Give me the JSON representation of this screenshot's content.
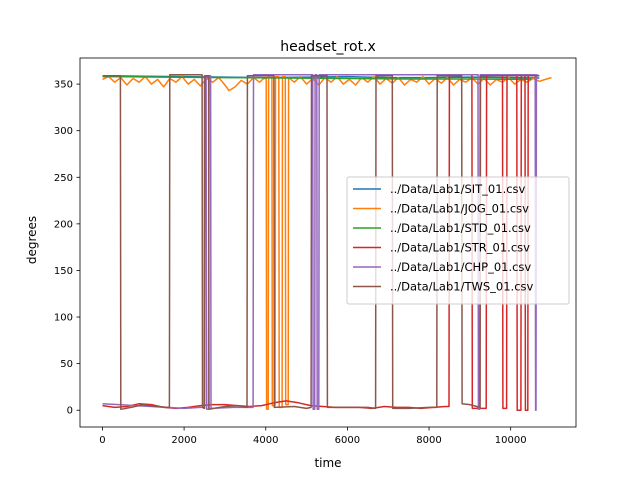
{
  "chart_data": {
    "type": "line",
    "title": "headset_rot.x",
    "xlabel": "time",
    "ylabel": "degrees",
    "xlim": [
      -550,
      11600
    ],
    "ylim": [
      -18,
      378
    ],
    "xticks": [
      0,
      2000,
      4000,
      6000,
      8000,
      10000
    ],
    "yticks": [
      0,
      50,
      100,
      150,
      200,
      250,
      300,
      350
    ],
    "legend_position": "center-right",
    "series": [
      {
        "name": "../Data/Lab1/SIT_01.csv",
        "color": "#1f77b4",
        "points": [
          [
            0,
            359
          ],
          [
            1000,
            358.5
          ],
          [
            2000,
            358
          ],
          [
            3000,
            357.5
          ],
          [
            4000,
            357
          ],
          [
            5000,
            357.5
          ],
          [
            6000,
            358
          ],
          [
            7000,
            357
          ],
          [
            8000,
            357
          ],
          [
            9000,
            357.5
          ],
          [
            10000,
            357
          ],
          [
            10700,
            356.5
          ]
        ]
      },
      {
        "name": "../Data/Lab1/JOG_01.csv",
        "color": "#ff7f0e",
        "points": [
          [
            0,
            355
          ],
          [
            150,
            358
          ],
          [
            300,
            352
          ],
          [
            450,
            357
          ],
          [
            600,
            349
          ],
          [
            750,
            356
          ],
          [
            900,
            352
          ],
          [
            1050,
            358
          ],
          [
            1200,
            350
          ],
          [
            1350,
            355
          ],
          [
            1500,
            347
          ],
          [
            1650,
            356
          ],
          [
            1800,
            352
          ],
          [
            1950,
            358
          ],
          [
            2100,
            350
          ],
          [
            2250,
            355
          ],
          [
            2400,
            348
          ],
          [
            2550,
            356
          ],
          [
            2700,
            352
          ],
          [
            2850,
            357
          ],
          [
            3000,
            349
          ],
          [
            3100,
            343
          ],
          [
            3250,
            347
          ],
          [
            3400,
            354
          ],
          [
            3550,
            350
          ],
          [
            3700,
            357
          ],
          [
            3850,
            352
          ],
          [
            3950,
            356
          ],
          [
            4010,
            356
          ],
          [
            4020,
            1
          ],
          [
            4060,
            1
          ],
          [
            4070,
            359
          ],
          [
            4150,
            359
          ],
          [
            4160,
            5
          ],
          [
            4230,
            5
          ],
          [
            4240,
            358
          ],
          [
            4320,
            358
          ],
          [
            4330,
            3
          ],
          [
            4400,
            3
          ],
          [
            4410,
            358
          ],
          [
            4480,
            358
          ],
          [
            4490,
            6
          ],
          [
            4550,
            6
          ],
          [
            4560,
            357
          ],
          [
            4700,
            352
          ],
          [
            4850,
            358
          ],
          [
            5000,
            350
          ],
          [
            5150,
            356
          ],
          [
            5300,
            349
          ],
          [
            5450,
            357
          ],
          [
            5600,
            352
          ],
          [
            5750,
            358
          ],
          [
            5900,
            350
          ],
          [
            6050,
            355
          ],
          [
            6200,
            349
          ],
          [
            6350,
            357
          ],
          [
            6500,
            352
          ],
          [
            6650,
            358
          ],
          [
            6800,
            350
          ],
          [
            6950,
            356
          ],
          [
            7100,
            351
          ],
          [
            7250,
            357
          ],
          [
            7400,
            349
          ],
          [
            7550,
            355
          ],
          [
            7700,
            352
          ],
          [
            7850,
            358
          ],
          [
            8000,
            350
          ],
          [
            8150,
            356
          ],
          [
            8300,
            351
          ],
          [
            8450,
            357
          ],
          [
            8600,
            349
          ],
          [
            8750,
            355
          ],
          [
            8900,
            352
          ],
          [
            9050,
            357
          ],
          [
            9200,
            350
          ],
          [
            9350,
            356
          ],
          [
            9500,
            349
          ],
          [
            9650,
            355
          ],
          [
            9800,
            352
          ],
          [
            9950,
            357
          ],
          [
            10100,
            350
          ],
          [
            10250,
            355
          ],
          [
            10400,
            352
          ],
          [
            10550,
            356
          ],
          [
            10700,
            353
          ],
          [
            10850,
            355
          ],
          [
            11000,
            357
          ]
        ]
      },
      {
        "name": "../Data/Lab1/STD_01.csv",
        "color": "#2ca02c",
        "points": [
          [
            0,
            358
          ],
          [
            1500,
            357.5
          ],
          [
            3000,
            357
          ],
          [
            4500,
            356.5
          ],
          [
            6000,
            356
          ],
          [
            7500,
            355.5
          ],
          [
            9000,
            355.5
          ],
          [
            10500,
            355
          ]
        ]
      },
      {
        "name": "../Data/Lab1/STR_01.csv",
        "color": "#d62728",
        "points": [
          [
            0,
            5
          ],
          [
            300,
            3
          ],
          [
            600,
            4
          ],
          [
            900,
            7
          ],
          [
            1200,
            6
          ],
          [
            1500,
            3
          ],
          [
            1800,
            2
          ],
          [
            2100,
            3
          ],
          [
            2400,
            5
          ],
          [
            2700,
            6
          ],
          [
            3000,
            6
          ],
          [
            3300,
            5
          ],
          [
            3600,
            4
          ],
          [
            3900,
            5
          ],
          [
            4200,
            8
          ],
          [
            4500,
            10
          ],
          [
            4800,
            8
          ],
          [
            5100,
            5
          ],
          [
            5400,
            4
          ],
          [
            5700,
            3
          ],
          [
            6000,
            3
          ],
          [
            6300,
            3
          ],
          [
            6600,
            2
          ],
          [
            6900,
            4
          ],
          [
            7200,
            3
          ],
          [
            7500,
            3
          ],
          [
            7800,
            2
          ],
          [
            8100,
            3
          ],
          [
            8400,
            4
          ],
          [
            8490,
            4
          ],
          [
            8500,
            360
          ],
          [
            9050,
            360
          ],
          [
            9060,
            2
          ],
          [
            9400,
            2
          ],
          [
            9410,
            360
          ],
          [
            9800,
            360
          ],
          [
            9810,
            2
          ],
          [
            9900,
            2
          ],
          [
            9910,
            360
          ],
          [
            10150,
            360
          ],
          [
            10160,
            0
          ],
          [
            10250,
            0
          ],
          [
            10260,
            360
          ],
          [
            10350,
            360
          ],
          [
            10360,
            0
          ],
          [
            10420,
            0
          ],
          [
            10430,
            360
          ],
          [
            10500,
            360
          ]
        ]
      },
      {
        "name": "../Data/Lab1/CHP_01.csv",
        "color": "#9467bd",
        "points": [
          [
            0,
            7
          ],
          [
            400,
            6
          ],
          [
            800,
            5
          ],
          [
            1200,
            4
          ],
          [
            1600,
            3
          ],
          [
            2000,
            2
          ],
          [
            2400,
            3
          ],
          [
            2490,
            3
          ],
          [
            2500,
            359
          ],
          [
            2540,
            359
          ],
          [
            2550,
            1
          ],
          [
            2600,
            1
          ],
          [
            2610,
            359
          ],
          [
            2650,
            359
          ],
          [
            2660,
            2
          ],
          [
            3200,
            3
          ],
          [
            3600,
            3
          ],
          [
            3690,
            3
          ],
          [
            3700,
            360
          ],
          [
            5150,
            360
          ],
          [
            5160,
            1
          ],
          [
            5200,
            1
          ],
          [
            5210,
            360
          ],
          [
            5250,
            360
          ],
          [
            5260,
            1
          ],
          [
            5300,
            1
          ],
          [
            5310,
            360
          ],
          [
            9200,
            360
          ],
          [
            9210,
            1
          ],
          [
            9240,
            1
          ],
          [
            9250,
            360
          ],
          [
            10600,
            360
          ],
          [
            10610,
            0
          ],
          [
            10620,
            0
          ],
          [
            10630,
            360
          ],
          [
            10700,
            359
          ]
        ]
      },
      {
        "name": "../Data/Lab1/TWS_01.csv",
        "color": "#8c564b",
        "points": [
          [
            0,
            359
          ],
          [
            440,
            359
          ],
          [
            450,
            1
          ],
          [
            700,
            3
          ],
          [
            1000,
            6
          ],
          [
            1300,
            4
          ],
          [
            1600,
            3
          ],
          [
            1640,
            3
          ],
          [
            1650,
            360
          ],
          [
            2440,
            360
          ],
          [
            2450,
            3
          ],
          [
            2500,
            2
          ],
          [
            2510,
            359
          ],
          [
            2600,
            359
          ],
          [
            2610,
            1
          ],
          [
            3000,
            4
          ],
          [
            3300,
            5
          ],
          [
            3540,
            3
          ],
          [
            3550,
            359
          ],
          [
            4200,
            359
          ],
          [
            4210,
            3
          ],
          [
            4700,
            4
          ],
          [
            5000,
            2
          ],
          [
            5110,
            3
          ],
          [
            5120,
            359
          ],
          [
            5500,
            359
          ],
          [
            5510,
            3
          ],
          [
            6000,
            3
          ],
          [
            6500,
            3
          ],
          [
            6690,
            2
          ],
          [
            6700,
            359
          ],
          [
            7100,
            359
          ],
          [
            7110,
            2
          ],
          [
            7500,
            2
          ],
          [
            8000,
            3
          ],
          [
            8190,
            3
          ],
          [
            8200,
            359
          ],
          [
            8800,
            359
          ],
          [
            8810,
            7
          ],
          [
            9000,
            6
          ],
          [
            9250,
            3
          ],
          [
            9260,
            359
          ],
          [
            10700,
            359
          ]
        ]
      }
    ]
  }
}
